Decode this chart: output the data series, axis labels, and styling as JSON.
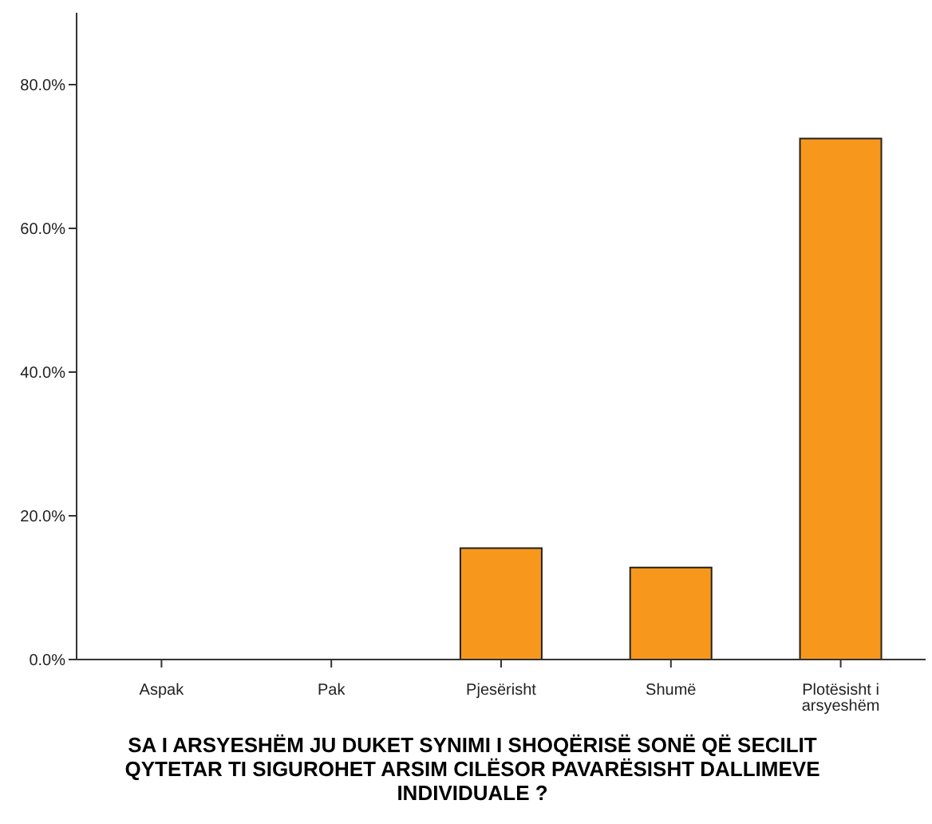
{
  "chart_data": {
    "type": "bar",
    "xlabel": "SA I ARSYESHËM JU DUKET SYNIMI I SHOQËRISË SONË QË SECILIT QYTETAR TI SIGUROHET ARSIM CILËSOR PAVARËSISHT DALLIMEVE INDIVIDUALE ?",
    "categories": [
      "Aspak",
      "Pak",
      "Pjesërisht",
      "Shumë",
      "Plotësisht i arsyeshëm"
    ],
    "values": [
      0,
      0,
      15.5,
      12.8,
      72.5
    ],
    "color": "#f7981d",
    "ylim": [
      0,
      90
    ],
    "yticks": [
      {
        "value": 0,
        "label": "0.0%"
      },
      {
        "value": 20,
        "label": "20.0%"
      },
      {
        "value": 40,
        "label": "40.0%"
      },
      {
        "value": 60,
        "label": "60.0%"
      },
      {
        "value": 80,
        "label": "80.0%"
      }
    ],
    "grid": false
  }
}
